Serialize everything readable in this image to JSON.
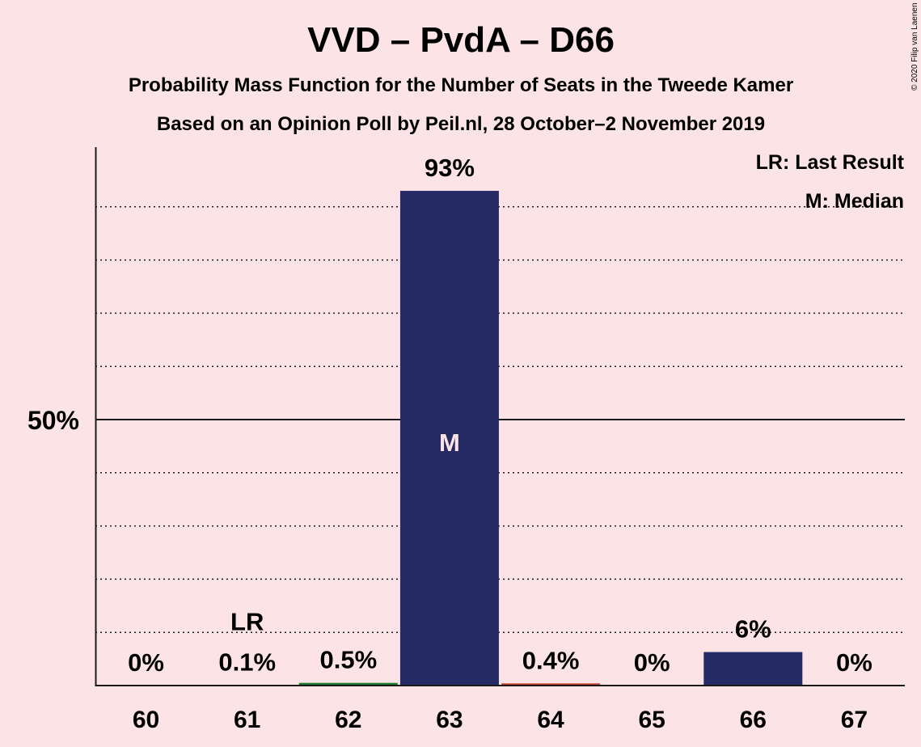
{
  "chart_data": {
    "type": "bar",
    "title": "VVD – PvdA – D66",
    "subtitle": "Probability Mass Function for the Number of Seats in the Tweede Kamer",
    "subtitle2": "Based on an Opinion Poll by Peil.nl, 28 October–2 November 2019",
    "copyright": "© 2020 Filip van Laenen",
    "categories": [
      "60",
      "61",
      "62",
      "63",
      "64",
      "65",
      "66",
      "67"
    ],
    "values": [
      0,
      0.1,
      0.5,
      93,
      0.4,
      0,
      6.3,
      0
    ],
    "value_labels": [
      "0%",
      "0.1%",
      "0.5%",
      "93%",
      "0.4%",
      "0%",
      "6%",
      "0%"
    ],
    "bar_colors": [
      "#252a64",
      "#252a64",
      "#1a7a2e",
      "#252a64",
      "#c0392b",
      "#252a64",
      "#252a64",
      "#252a64"
    ],
    "ylim": [
      0,
      100
    ],
    "yticks": [
      {
        "value": 50,
        "label": "50%"
      }
    ],
    "grid_step": 10,
    "last_result_category": "61",
    "last_result_label": "LR",
    "median_category": "63",
    "median_label": "M",
    "legend": {
      "position": "top-right",
      "items": [
        "LR: Last Result",
        "M: Median"
      ]
    },
    "colors": {
      "background": "#fce4e6",
      "bar": "#252a64",
      "text": "#1a1a1a"
    }
  }
}
